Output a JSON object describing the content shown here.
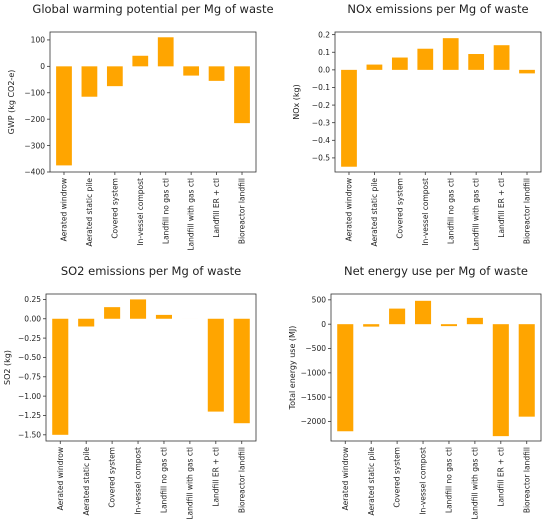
{
  "chart_data": [
    {
      "type": "bar",
      "title": "Global warming potential per Mg of waste",
      "xlabel": "",
      "ylabel": "GWP (kg CO2-e)",
      "categories": [
        "Aerated windrow",
        "Aerated static pile",
        "Covered system",
        "In-vessel compost",
        "Landfill no gas ctl",
        "Landfill with gas ctl",
        "Landfill ER + ctl",
        "Bioreactor landfill"
      ],
      "values": [
        -375,
        -115,
        -75,
        40,
        110,
        -35,
        -55,
        -215
      ],
      "ylim": [
        -400,
        130
      ],
      "yticks": [
        100,
        0,
        -100,
        -200,
        -300,
        -400
      ],
      "ytick_labels": [
        "100",
        "0",
        "−100",
        "−200",
        "−300",
        "−400"
      ],
      "bar_color": "#FFA500",
      "grid": false
    },
    {
      "type": "bar",
      "title": "NOx emissions per Mg of waste",
      "xlabel": "",
      "ylabel": "NOx (kg)",
      "categories": [
        "Aerated windrow",
        "Aerated static pile",
        "Covered system",
        "In-vessel compost",
        "Landfill no gas ctl",
        "Landfill with gas ctl",
        "Landfill ER + ctl",
        "Bioreactor landfill"
      ],
      "values": [
        -0.55,
        0.03,
        0.07,
        0.12,
        0.18,
        0.09,
        0.14,
        -0.02
      ],
      "ylim": [
        -0.58,
        0.215
      ],
      "yticks": [
        0.2,
        0.1,
        0.0,
        -0.1,
        -0.2,
        -0.3,
        -0.4,
        -0.5
      ],
      "ytick_labels": [
        "0.2",
        "0.1",
        "0.0",
        "−0.1",
        "−0.2",
        "−0.3",
        "−0.4",
        "−0.5"
      ],
      "bar_color": "#FFA500",
      "grid": false
    },
    {
      "type": "bar",
      "title": "SO2 emissions per Mg of waste",
      "xlabel": "",
      "ylabel": "SO2 (kg)",
      "categories": [
        "Aerated windrow",
        "Aerated static pile",
        "Covered system",
        "In-vessel compost",
        "Landfill no gas ctl",
        "Landfill with gas ctl",
        "Landfill ER + ctl",
        "Bioreactor landfill"
      ],
      "values": [
        -1.5,
        -0.1,
        0.15,
        0.25,
        0.05,
        0.0,
        -1.2,
        -1.35
      ],
      "ylim": [
        -1.58,
        0.32
      ],
      "yticks": [
        0.25,
        0.0,
        -0.25,
        -0.5,
        -0.75,
        -1.0,
        -1.25,
        -1.5
      ],
      "ytick_labels": [
        "0.25",
        "0.00",
        "−0.25",
        "−0.50",
        "−0.75",
        "−1.00",
        "−1.25",
        "−1.50"
      ],
      "bar_color": "#FFA500",
      "grid": false
    },
    {
      "type": "bar",
      "title": "Net energy use per Mg of waste",
      "xlabel": "",
      "ylabel": "Total energy use (MJ)",
      "categories": [
        "Aerated windrow",
        "Aerated static pile",
        "Covered system",
        "In-vessel compost",
        "Landfill no gas ctl",
        "Landfill with gas ctl",
        "Landfill ER + ctl",
        "Bioreactor landfill"
      ],
      "values": [
        -2200,
        -50,
        320,
        480,
        -40,
        130,
        -2300,
        -1900
      ],
      "ylim": [
        -2400,
        620
      ],
      "yticks": [
        500,
        0,
        -500,
        -1000,
        -1500,
        -2000
      ],
      "ytick_labels": [
        "500",
        "0",
        "−500",
        "−1000",
        "−1500",
        "−2000"
      ],
      "bar_color": "#FFA500",
      "grid": false
    }
  ]
}
